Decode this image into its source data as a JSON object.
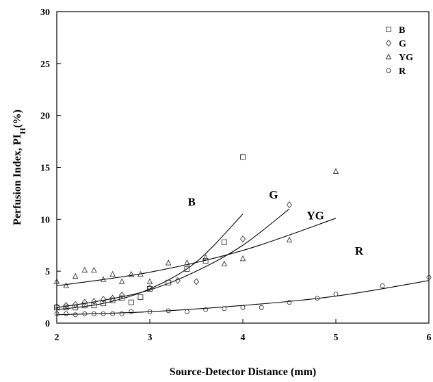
{
  "chart_data": {
    "type": "scatter",
    "xlabel": "Source-Detector Distance (mm)",
    "ylabel": "Perfusion Index, PI",
    "ylabel_sub": "H",
    "ylabel_suffix": "(%)",
    "xlim": [
      2,
      6
    ],
    "ylim": [
      0,
      30
    ],
    "xticks": [
      2,
      3,
      4,
      5,
      6
    ],
    "yticks": [
      0,
      5,
      10,
      15,
      20,
      25,
      30
    ],
    "grid": false,
    "legend_position": "top-right",
    "series": [
      {
        "name": "B",
        "marker": "square",
        "points": [
          [
            2.0,
            1.5
          ],
          [
            2.1,
            1.5
          ],
          [
            2.2,
            1.5
          ],
          [
            2.3,
            1.7
          ],
          [
            2.4,
            1.7
          ],
          [
            2.5,
            1.9
          ],
          [
            2.6,
            2.2
          ],
          [
            2.7,
            2.4
          ],
          [
            2.8,
            2.0
          ],
          [
            2.9,
            2.5
          ],
          [
            3.0,
            3.3
          ],
          [
            3.2,
            3.9
          ],
          [
            3.4,
            5.2
          ],
          [
            3.6,
            6.0
          ],
          [
            3.8,
            7.8
          ],
          [
            4.0,
            16.0
          ]
        ],
        "fit": [
          [
            2.0,
            1.3
          ],
          [
            2.5,
            1.9
          ],
          [
            3.0,
            3.3
          ],
          [
            3.5,
            5.9
          ],
          [
            4.0,
            10.5
          ]
        ],
        "curve_label": "B",
        "curve_label_pos": [
          3.45,
          11.3
        ]
      },
      {
        "name": "G",
        "marker": "diamond",
        "points": [
          [
            2.0,
            1.6
          ],
          [
            2.1,
            1.7
          ],
          [
            2.2,
            1.8
          ],
          [
            2.3,
            2.0
          ],
          [
            2.4,
            2.1
          ],
          [
            2.5,
            2.3
          ],
          [
            2.6,
            2.4
          ],
          [
            2.7,
            2.7
          ],
          [
            3.0,
            3.4
          ],
          [
            3.3,
            4.1
          ],
          [
            3.5,
            4.0
          ],
          [
            4.0,
            8.1
          ],
          [
            4.5,
            11.4
          ]
        ],
        "fit": [
          [
            2.0,
            1.5
          ],
          [
            2.5,
            2.2
          ],
          [
            3.0,
            3.2
          ],
          [
            3.5,
            5.0
          ],
          [
            4.0,
            7.5
          ],
          [
            4.5,
            11.0
          ]
        ],
        "curve_label": "G",
        "curve_label_pos": [
          4.33,
          12.0
        ]
      },
      {
        "name": "YG",
        "marker": "triangle",
        "points": [
          [
            2.0,
            4.0
          ],
          [
            2.1,
            3.6
          ],
          [
            2.2,
            4.5
          ],
          [
            2.3,
            5.1
          ],
          [
            2.4,
            5.1
          ],
          [
            2.5,
            4.2
          ],
          [
            2.6,
            4.7
          ],
          [
            2.7,
            4.0
          ],
          [
            2.8,
            4.7
          ],
          [
            2.9,
            4.7
          ],
          [
            3.0,
            4.0
          ],
          [
            3.2,
            5.8
          ],
          [
            3.4,
            5.8
          ],
          [
            3.6,
            6.3
          ],
          [
            3.8,
            5.7
          ],
          [
            4.0,
            6.2
          ],
          [
            4.5,
            8.0
          ],
          [
            5.0,
            14.6
          ]
        ],
        "fit": [
          [
            2.0,
            3.6
          ],
          [
            3.0,
            4.9
          ],
          [
            4.0,
            7.0
          ],
          [
            5.0,
            10.1
          ]
        ],
        "curve_label": "YG",
        "curve_label_pos": [
          4.78,
          10.0
        ]
      },
      {
        "name": "R",
        "marker": "circle",
        "points": [
          [
            2.0,
            0.9
          ],
          [
            2.1,
            0.9
          ],
          [
            2.2,
            0.8
          ],
          [
            2.3,
            0.9
          ],
          [
            2.4,
            0.9
          ],
          [
            2.5,
            0.9
          ],
          [
            2.6,
            0.9
          ],
          [
            2.7,
            0.9
          ],
          [
            2.8,
            1.1
          ],
          [
            3.0,
            1.1
          ],
          [
            3.2,
            1.2
          ],
          [
            3.4,
            1.1
          ],
          [
            3.6,
            1.3
          ],
          [
            3.8,
            1.4
          ],
          [
            4.0,
            1.5
          ],
          [
            4.2,
            1.5
          ],
          [
            4.5,
            2.0
          ],
          [
            4.8,
            2.4
          ],
          [
            5.0,
            2.8
          ],
          [
            5.5,
            3.6
          ],
          [
            6.0,
            4.4
          ]
        ],
        "fit": [
          [
            2.0,
            0.8
          ],
          [
            3.0,
            1.1
          ],
          [
            4.0,
            1.7
          ],
          [
            5.0,
            2.6
          ],
          [
            6.0,
            4.1
          ]
        ],
        "curve_label": "R",
        "curve_label_pos": [
          5.25,
          6.6
        ]
      }
    ]
  }
}
